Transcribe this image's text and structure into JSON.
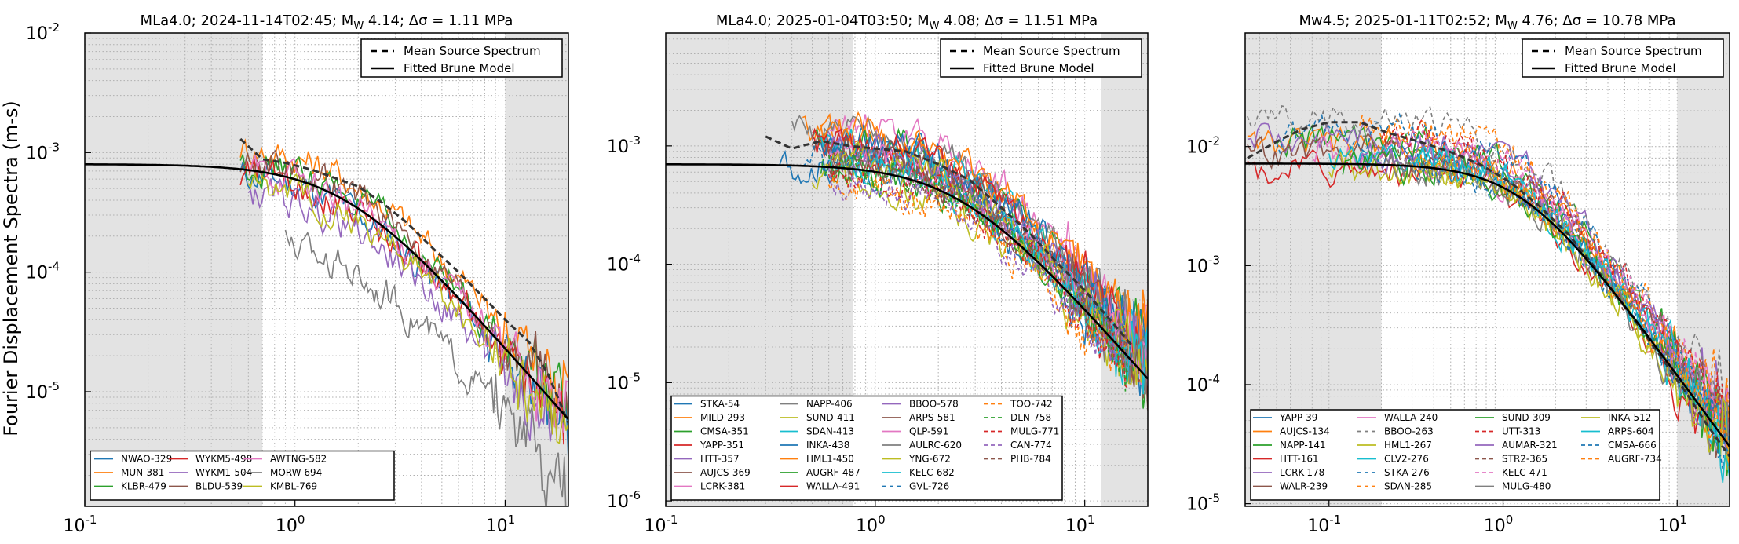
{
  "figure": {
    "ylabel": "Fourier Displacement Spectra (m-s)"
  },
  "chart_data": [
    {
      "type": "line",
      "title": "MLa4.0; 2024-11-14T02:45; M_W 4.14; Δσ = 1.11 MPa",
      "title_parts": {
        "pre": "MLa4.0; 2024-11-14T02:45; M",
        "sub": "W",
        "post": " 4.14; Δσ = 1.11 MPa"
      },
      "xscale": "log",
      "yscale": "log",
      "xlim": [
        0.1,
        20
      ],
      "ylim": [
        1.1e-06,
        0.01
      ],
      "xticks": [
        {
          "v": 0.1,
          "base": "10",
          "exp": "-1"
        },
        {
          "v": 1,
          "base": "10",
          "exp": "0"
        },
        {
          "v": 10,
          "base": "10",
          "exp": "1"
        }
      ],
      "yticks": [
        {
          "v": 1e-05,
          "base": "10",
          "exp": "-5"
        },
        {
          "v": 0.0001,
          "base": "10",
          "exp": "-4"
        },
        {
          "v": 0.001,
          "base": "10",
          "exp": "-3"
        },
        {
          "v": 0.01,
          "base": "10",
          "exp": "-2"
        }
      ],
      "shaded_freq_bands": [
        [
          0.1,
          0.7
        ],
        [
          10,
          20
        ]
      ],
      "grid": true,
      "legend_top": {
        "position": "top-right",
        "entries": [
          {
            "label": "Mean Source Spectrum",
            "style": "dashed"
          },
          {
            "label": "Fitted Brune Model",
            "style": "solid"
          }
        ]
      },
      "brune": {
        "omega0": 0.0008,
        "fc": 1.72,
        "fmin": 0.1,
        "fmax": 20
      },
      "mean_spectrum": {
        "f": [
          0.55,
          0.7,
          0.9,
          1.2,
          1.6,
          2.0,
          2.6,
          3.4,
          4.5,
          6,
          8,
          10,
          13,
          16,
          20
        ],
        "a": [
          0.0013,
          0.00088,
          0.00082,
          0.00072,
          0.0006,
          0.00052,
          0.00038,
          0.00026,
          0.00016,
          0.0001,
          6e-05,
          4e-05,
          2.6e-05,
          1.4e-05,
          5.5e-06
        ]
      },
      "stations": {
        "legend_position": "bottom-left",
        "columns": 4,
        "series": [
          {
            "name": "NWAO-329",
            "color": "#1f77b4",
            "fmin": 0.55,
            "fmax": 20,
            "r": -0.05,
            "style": "solid"
          },
          {
            "name": "MUN-381",
            "color": "#ff7f0e",
            "fmin": 0.55,
            "fmax": 20,
            "r": 0.18,
            "style": "solid"
          },
          {
            "name": "KLBR-479",
            "color": "#2ca02c",
            "fmin": 0.55,
            "fmax": 20,
            "r": 0.05,
            "style": "solid"
          },
          {
            "name": "WYKM5-498",
            "color": "#d62728",
            "fmin": 0.55,
            "fmax": 19,
            "r": -0.04,
            "style": "solid"
          },
          {
            "name": "WYKM1-504",
            "color": "#9467bd",
            "fmin": 0.6,
            "fmax": 19,
            "r": -0.2,
            "style": "solid"
          },
          {
            "name": "BLDU-539",
            "color": "#8c564b",
            "fmin": 0.55,
            "fmax": 20,
            "r": 0.08,
            "style": "solid"
          },
          {
            "name": "AWTNG-582",
            "color": "#e377c2",
            "fmin": 0.6,
            "fmax": 20,
            "r": 0.0,
            "style": "solid"
          },
          {
            "name": "MORW-694",
            "color": "#7f7f7f",
            "fmin": 0.9,
            "fmax": 20,
            "r": -0.55,
            "style": "solid"
          },
          {
            "name": "KMBL-769",
            "color": "#bcbd22",
            "fmin": 0.6,
            "fmax": 20,
            "r": -0.1,
            "style": "solid"
          }
        ]
      }
    },
    {
      "type": "line",
      "title": "MLa4.0; 2025-01-04T03:50; M_W 4.08; Δσ = 11.51 MPa",
      "title_parts": {
        "pre": "MLa4.0; 2025-01-04T03:50; M",
        "sub": "W",
        "post": " 4.08; Δσ = 11.51 MPa"
      },
      "xscale": "log",
      "yscale": "log",
      "xlim": [
        0.1,
        20
      ],
      "ylim": [
        9e-07,
        0.009
      ],
      "xticks": [
        {
          "v": 0.1,
          "base": "10",
          "exp": "-1"
        },
        {
          "v": 1,
          "base": "10",
          "exp": "0"
        },
        {
          "v": 10,
          "base": "10",
          "exp": "1"
        }
      ],
      "yticks": [
        {
          "v": 1e-06,
          "base": "10",
          "exp": "-6"
        },
        {
          "v": 1e-05,
          "base": "10",
          "exp": "-5"
        },
        {
          "v": 0.0001,
          "base": "10",
          "exp": "-4"
        },
        {
          "v": 0.001,
          "base": "10",
          "exp": "-3"
        }
      ],
      "shaded_freq_bands": [
        [
          0.1,
          0.78
        ],
        [
          12,
          20
        ]
      ],
      "grid": true,
      "legend_top": {
        "position": "top-right",
        "entries": [
          {
            "label": "Mean Source Spectrum",
            "style": "dashed"
          },
          {
            "label": "Fitted Brune Model",
            "style": "solid"
          }
        ]
      },
      "brune": {
        "omega0": 0.0007,
        "fc": 2.5,
        "fmin": 0.1,
        "fmax": 20
      },
      "mean_spectrum": {
        "f": [
          0.3,
          0.4,
          0.55,
          0.75,
          1.0,
          1.4,
          2.0,
          2.8,
          4,
          5.5,
          7.5,
          10,
          13,
          17
        ],
        "a": [
          0.0012,
          0.00095,
          0.0011,
          0.001,
          0.00095,
          0.0009,
          0.0007,
          0.00052,
          0.0003,
          0.00018,
          0.0001,
          6e-05,
          3.5e-05,
          2e-05
        ]
      },
      "stations": {
        "legend_position": "bottom-left",
        "columns": 4,
        "series": [
          {
            "name": "STKA-54",
            "color": "#1f77b4",
            "fmin": 0.35,
            "fmax": 20,
            "r": 0.0,
            "style": "solid"
          },
          {
            "name": "MILD-293",
            "color": "#ff7f0e",
            "fmin": 0.45,
            "fmax": 20,
            "r": 0.3,
            "style": "solid"
          },
          {
            "name": "CMSA-351",
            "color": "#2ca02c",
            "fmin": 0.5,
            "fmax": 20,
            "r": 0.25,
            "style": "solid"
          },
          {
            "name": "YAPP-351",
            "color": "#d62728",
            "fmin": 0.5,
            "fmax": 20,
            "r": 0.15,
            "style": "solid"
          },
          {
            "name": "HTT-357",
            "color": "#9467bd",
            "fmin": 0.55,
            "fmax": 20,
            "r": 0.2,
            "style": "solid"
          },
          {
            "name": "AUJCS-369",
            "color": "#8c564b",
            "fmin": 0.5,
            "fmax": 20,
            "r": 0.1,
            "style": "solid"
          },
          {
            "name": "LCRK-381",
            "color": "#e377c2",
            "fmin": 0.6,
            "fmax": 20,
            "r": 0.35,
            "style": "solid"
          },
          {
            "name": "NAPP-406",
            "color": "#7f7f7f",
            "fmin": 0.4,
            "fmax": 20,
            "r": 0.3,
            "style": "solid"
          },
          {
            "name": "SUND-411",
            "color": "#bcbd22",
            "fmin": 0.5,
            "fmax": 20,
            "r": -0.1,
            "style": "solid"
          },
          {
            "name": "SDAN-413",
            "color": "#17becf",
            "fmin": 0.55,
            "fmax": 20,
            "r": 0.2,
            "style": "solid"
          },
          {
            "name": "INKA-438",
            "color": "#1f77b4",
            "fmin": 0.55,
            "fmax": 20,
            "r": 0.25,
            "style": "solid"
          },
          {
            "name": "HML1-450",
            "color": "#ff7f0e",
            "fmin": 0.55,
            "fmax": 20,
            "r": 0.3,
            "style": "solid"
          },
          {
            "name": "AUGRF-487",
            "color": "#2ca02c",
            "fmin": 0.55,
            "fmax": 20,
            "r": 0.0,
            "style": "solid"
          },
          {
            "name": "WALLA-491",
            "color": "#d62728",
            "fmin": 0.5,
            "fmax": 20,
            "r": 0.2,
            "style": "solid"
          },
          {
            "name": "BBOO-578",
            "color": "#9467bd",
            "fmin": 0.6,
            "fmax": 20,
            "r": 0.15,
            "style": "solid"
          },
          {
            "name": "ARPS-581",
            "color": "#8c564b",
            "fmin": 0.6,
            "fmax": 20,
            "r": 0.1,
            "style": "solid"
          },
          {
            "name": "QLP-591",
            "color": "#e377c2",
            "fmin": 0.6,
            "fmax": 20,
            "r": 0.1,
            "style": "solid"
          },
          {
            "name": "AULRC-620",
            "color": "#7f7f7f",
            "fmin": 0.6,
            "fmax": 20,
            "r": 0.05,
            "style": "solid"
          },
          {
            "name": "YNG-672",
            "color": "#bcbd22",
            "fmin": 0.6,
            "fmax": 20,
            "r": 0.1,
            "style": "solid"
          },
          {
            "name": "KELC-682",
            "color": "#17becf",
            "fmin": 0.6,
            "fmax": 20,
            "r": 0.05,
            "style": "solid"
          },
          {
            "name": "GVL-726",
            "color": "#1f77b4",
            "fmin": 0.45,
            "fmax": 17,
            "r": 0.1,
            "style": "dashed"
          },
          {
            "name": "TOO-742",
            "color": "#ff7f0e",
            "fmin": 0.6,
            "fmax": 16,
            "r": -0.15,
            "style": "dashed"
          },
          {
            "name": "DLN-758",
            "color": "#2ca02c",
            "fmin": 0.6,
            "fmax": 16,
            "r": 0.0,
            "style": "dashed"
          },
          {
            "name": "MULG-771",
            "color": "#d62728",
            "fmin": 0.6,
            "fmax": 16,
            "r": -0.05,
            "style": "dashed"
          },
          {
            "name": "CAN-774",
            "color": "#9467bd",
            "fmin": 0.6,
            "fmax": 16,
            "r": -0.1,
            "style": "dashed"
          },
          {
            "name": "PHB-784",
            "color": "#8c564b",
            "fmin": 0.6,
            "fmax": 16,
            "r": 0.05,
            "style": "dashed"
          }
        ]
      }
    },
    {
      "type": "line",
      "title": "Mw4.5; 2025-01-11T02:52; M_W 4.76; Δσ = 10.78 MPa",
      "title_parts": {
        "pre": "Mw4.5; 2025-01-11T02:52; M",
        "sub": "W",
        "post": " 4.76; Δσ = 10.78 MPa"
      },
      "xscale": "log",
      "yscale": "log",
      "xlim": [
        0.033,
        20
      ],
      "ylim": [
        9.5e-06,
        0.09
      ],
      "xticks": [
        {
          "v": 0.1,
          "base": "10",
          "exp": "-1"
        },
        {
          "v": 1,
          "base": "10",
          "exp": "0"
        },
        {
          "v": 10,
          "base": "10",
          "exp": "1"
        }
      ],
      "yticks": [
        {
          "v": 1e-05,
          "base": "10",
          "exp": "-5"
        },
        {
          "v": 0.0001,
          "base": "10",
          "exp": "-4"
        },
        {
          "v": 0.001,
          "base": "10",
          "exp": "-3"
        },
        {
          "v": 0.01,
          "base": "10",
          "exp": "-2"
        }
      ],
      "shaded_freq_bands": [
        [
          0.033,
          0.2
        ],
        [
          10,
          20
        ]
      ],
      "grid": true,
      "legend_top": {
        "position": "top-right",
        "entries": [
          {
            "label": "Mean Source Spectrum",
            "style": "dashed"
          },
          {
            "label": "Fitted Brune Model",
            "style": "solid"
          }
        ]
      },
      "brune": {
        "omega0": 0.0072,
        "fc": 1.3,
        "fmin": 0.033,
        "fmax": 20
      },
      "mean_spectrum": {
        "f": [
          0.034,
          0.05,
          0.07,
          0.1,
          0.15,
          0.22,
          0.33,
          0.5,
          0.75,
          1.1,
          1.6,
          2.4,
          3.5,
          5,
          7.5,
          11,
          15,
          20
        ],
        "a": [
          0.008,
          0.011,
          0.014,
          0.016,
          0.016,
          0.013,
          0.011,
          0.009,
          0.007,
          0.005,
          0.0032,
          0.0018,
          0.0009,
          0.00045,
          0.0002,
          9e-05,
          4.5e-05,
          2.5e-05
        ]
      },
      "stations": {
        "legend_position": "bottom-left",
        "columns": 4,
        "series": [
          {
            "name": "YAPP-39",
            "color": "#1f77b4",
            "fmin": 0.15,
            "fmax": 20,
            "r": 0.05,
            "style": "solid"
          },
          {
            "name": "AUJCS-134",
            "color": "#ff7f0e",
            "fmin": 0.034,
            "fmax": 20,
            "r": 0.15,
            "style": "solid"
          },
          {
            "name": "NAPP-141",
            "color": "#2ca02c",
            "fmin": 0.05,
            "fmax": 20,
            "r": 0.2,
            "style": "solid"
          },
          {
            "name": "HTT-161",
            "color": "#d62728",
            "fmin": 0.034,
            "fmax": 20,
            "r": -0.05,
            "style": "solid"
          },
          {
            "name": "LCRK-178",
            "color": "#9467bd",
            "fmin": 0.034,
            "fmax": 20,
            "r": 0.25,
            "style": "solid"
          },
          {
            "name": "WALR-239",
            "color": "#8c564b",
            "fmin": 0.034,
            "fmax": 20,
            "r": 0.1,
            "style": "solid"
          },
          {
            "name": "WALLA-240",
            "color": "#e377c2",
            "fmin": 0.08,
            "fmax": 20,
            "r": 0.1,
            "style": "solid"
          },
          {
            "name": "BBOO-263",
            "color": "#7f7f7f",
            "fmin": 0.034,
            "fmax": 20,
            "r": 0.35,
            "style": "dashed"
          },
          {
            "name": "HML1-267",
            "color": "#bcbd22",
            "fmin": 0.1,
            "fmax": 20,
            "r": 0.0,
            "style": "solid"
          },
          {
            "name": "CLV2-276",
            "color": "#17becf",
            "fmin": 0.1,
            "fmax": 20,
            "r": 0.05,
            "style": "solid"
          },
          {
            "name": "STKA-276",
            "color": "#1f77b4",
            "fmin": 0.05,
            "fmax": 20,
            "r": 0.25,
            "style": "dashed"
          },
          {
            "name": "SDAN-285",
            "color": "#ff7f0e",
            "fmin": 0.15,
            "fmax": 20,
            "r": 0.3,
            "style": "dashed"
          },
          {
            "name": "SUND-309",
            "color": "#2ca02c",
            "fmin": 0.12,
            "fmax": 20,
            "r": 0.0,
            "style": "solid"
          },
          {
            "name": "UTT-313",
            "color": "#d62728",
            "fmin": 0.2,
            "fmax": 20,
            "r": 0.2,
            "style": "dashed"
          },
          {
            "name": "AUMAR-321",
            "color": "#9467bd",
            "fmin": 0.15,
            "fmax": 20,
            "r": 0.1,
            "style": "solid"
          },
          {
            "name": "STR2-365",
            "color": "#8c564b",
            "fmin": 0.2,
            "fmax": 20,
            "r": 0.1,
            "style": "dashed"
          },
          {
            "name": "KELC-471",
            "color": "#e377c2",
            "fmin": 0.3,
            "fmax": 20,
            "r": 0.2,
            "style": "dashed"
          },
          {
            "name": "MULG-480",
            "color": "#7f7f7f",
            "fmin": 0.2,
            "fmax": 20,
            "r": 0.0,
            "style": "solid"
          },
          {
            "name": "INKA-512",
            "color": "#bcbd22",
            "fmin": 0.3,
            "fmax": 20,
            "r": -0.05,
            "style": "solid"
          },
          {
            "name": "ARPS-604",
            "color": "#17becf",
            "fmin": 0.3,
            "fmax": 20,
            "r": 0.05,
            "style": "solid"
          },
          {
            "name": "CMSA-666",
            "color": "#1f77b4",
            "fmin": 0.3,
            "fmax": 20,
            "r": 0.0,
            "style": "dashed"
          },
          {
            "name": "AUGRF-734",
            "color": "#ff7f0e",
            "fmin": 0.3,
            "fmax": 20,
            "r": 0.05,
            "style": "dashed"
          }
        ]
      }
    }
  ]
}
